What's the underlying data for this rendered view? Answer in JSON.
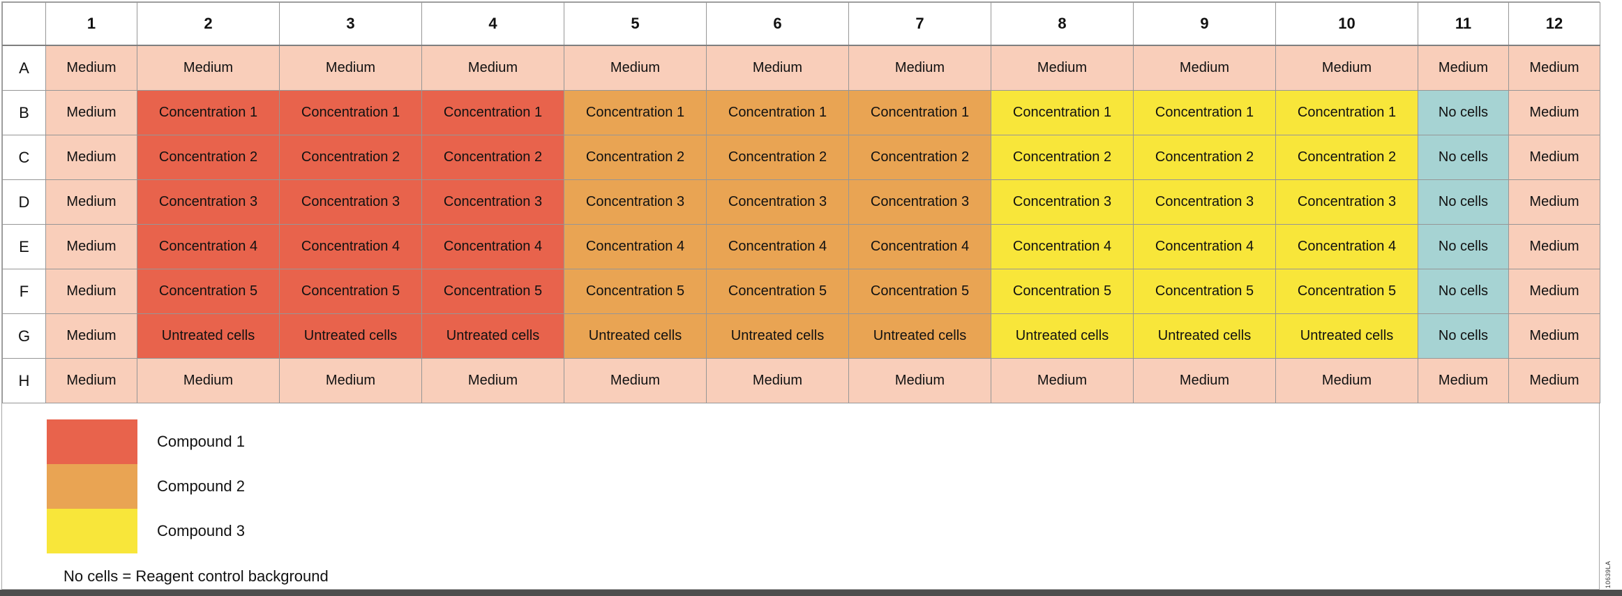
{
  "colors": {
    "medium": "#F9CEBA",
    "compound1": "#E8634C",
    "compound2": "#E9A453",
    "compound3": "#F8E63A",
    "no_cells": "#A6D3D3"
  },
  "plate": {
    "column_headers": [
      "1",
      "2",
      "3",
      "4",
      "5",
      "6",
      "7",
      "8",
      "9",
      "10",
      "11",
      "12"
    ],
    "rows": [
      {
        "label": "A",
        "cells": [
          {
            "text": "Medium",
            "bg": "medium"
          },
          {
            "text": "Medium",
            "bg": "medium"
          },
          {
            "text": "Medium",
            "bg": "medium"
          },
          {
            "text": "Medium",
            "bg": "medium"
          },
          {
            "text": "Medium",
            "bg": "medium"
          },
          {
            "text": "Medium",
            "bg": "medium"
          },
          {
            "text": "Medium",
            "bg": "medium"
          },
          {
            "text": "Medium",
            "bg": "medium"
          },
          {
            "text": "Medium",
            "bg": "medium"
          },
          {
            "text": "Medium",
            "bg": "medium"
          },
          {
            "text": "Medium",
            "bg": "medium"
          },
          {
            "text": "Medium",
            "bg": "medium"
          }
        ]
      },
      {
        "label": "B",
        "cells": [
          {
            "text": "Medium",
            "bg": "medium"
          },
          {
            "text": "Concentration 1",
            "bg": "compound1"
          },
          {
            "text": "Concentration 1",
            "bg": "compound1"
          },
          {
            "text": "Concentration 1",
            "bg": "compound1"
          },
          {
            "text": "Concentration 1",
            "bg": "compound2"
          },
          {
            "text": "Concentration 1",
            "bg": "compound2"
          },
          {
            "text": "Concentration 1",
            "bg": "compound2"
          },
          {
            "text": "Concentration 1",
            "bg": "compound3"
          },
          {
            "text": "Concentration 1",
            "bg": "compound3"
          },
          {
            "text": "Concentration 1",
            "bg": "compound3"
          },
          {
            "text": "No cells",
            "bg": "no_cells"
          },
          {
            "text": "Medium",
            "bg": "medium"
          }
        ]
      },
      {
        "label": "C",
        "cells": [
          {
            "text": "Medium",
            "bg": "medium"
          },
          {
            "text": "Concentration 2",
            "bg": "compound1"
          },
          {
            "text": "Concentration 2",
            "bg": "compound1"
          },
          {
            "text": "Concentration 2",
            "bg": "compound1"
          },
          {
            "text": "Concentration 2",
            "bg": "compound2"
          },
          {
            "text": "Concentration 2",
            "bg": "compound2"
          },
          {
            "text": "Concentration 2",
            "bg": "compound2"
          },
          {
            "text": "Concentration 2",
            "bg": "compound3"
          },
          {
            "text": "Concentration 2",
            "bg": "compound3"
          },
          {
            "text": "Concentration 2",
            "bg": "compound3"
          },
          {
            "text": "No cells",
            "bg": "no_cells"
          },
          {
            "text": "Medium",
            "bg": "medium"
          }
        ]
      },
      {
        "label": "D",
        "cells": [
          {
            "text": "Medium",
            "bg": "medium"
          },
          {
            "text": "Concentration 3",
            "bg": "compound1"
          },
          {
            "text": "Concentration 3",
            "bg": "compound1"
          },
          {
            "text": "Concentration 3",
            "bg": "compound1"
          },
          {
            "text": "Concentration 3",
            "bg": "compound2"
          },
          {
            "text": "Concentration 3",
            "bg": "compound2"
          },
          {
            "text": "Concentration 3",
            "bg": "compound2"
          },
          {
            "text": "Concentration 3",
            "bg": "compound3"
          },
          {
            "text": "Concentration 3",
            "bg": "compound3"
          },
          {
            "text": "Concentration 3",
            "bg": "compound3"
          },
          {
            "text": "No cells",
            "bg": "no_cells"
          },
          {
            "text": "Medium",
            "bg": "medium"
          }
        ]
      },
      {
        "label": "E",
        "cells": [
          {
            "text": "Medium",
            "bg": "medium"
          },
          {
            "text": "Concentration 4",
            "bg": "compound1"
          },
          {
            "text": "Concentration 4",
            "bg": "compound1"
          },
          {
            "text": "Concentration 4",
            "bg": "compound1"
          },
          {
            "text": "Concentration 4",
            "bg": "compound2"
          },
          {
            "text": "Concentration 4",
            "bg": "compound2"
          },
          {
            "text": "Concentration 4",
            "bg": "compound2"
          },
          {
            "text": "Concentration 4",
            "bg": "compound3"
          },
          {
            "text": "Concentration 4",
            "bg": "compound3"
          },
          {
            "text": "Concentration 4",
            "bg": "compound3"
          },
          {
            "text": "No cells",
            "bg": "no_cells"
          },
          {
            "text": "Medium",
            "bg": "medium"
          }
        ]
      },
      {
        "label": "F",
        "cells": [
          {
            "text": "Medium",
            "bg": "medium"
          },
          {
            "text": "Concentration 5",
            "bg": "compound1"
          },
          {
            "text": "Concentration 5",
            "bg": "compound1"
          },
          {
            "text": "Concentration 5",
            "bg": "compound1"
          },
          {
            "text": "Concentration 5",
            "bg": "compound2"
          },
          {
            "text": "Concentration 5",
            "bg": "compound2"
          },
          {
            "text": "Concentration 5",
            "bg": "compound2"
          },
          {
            "text": "Concentration 5",
            "bg": "compound3"
          },
          {
            "text": "Concentration 5",
            "bg": "compound3"
          },
          {
            "text": "Concentration 5",
            "bg": "compound3"
          },
          {
            "text": "No cells",
            "bg": "no_cells"
          },
          {
            "text": "Medium",
            "bg": "medium"
          }
        ]
      },
      {
        "label": "G",
        "cells": [
          {
            "text": "Medium",
            "bg": "medium"
          },
          {
            "text": "Untreated cells",
            "bg": "compound1"
          },
          {
            "text": "Untreated cells",
            "bg": "compound1"
          },
          {
            "text": "Untreated cells",
            "bg": "compound1"
          },
          {
            "text": "Untreated cells",
            "bg": "compound2"
          },
          {
            "text": "Untreated cells",
            "bg": "compound2"
          },
          {
            "text": "Untreated cells",
            "bg": "compound2"
          },
          {
            "text": "Untreated cells",
            "bg": "compound3"
          },
          {
            "text": "Untreated cells",
            "bg": "compound3"
          },
          {
            "text": "Untreated cells",
            "bg": "compound3"
          },
          {
            "text": "No cells",
            "bg": "no_cells"
          },
          {
            "text": "Medium",
            "bg": "medium"
          }
        ]
      },
      {
        "label": "H",
        "cells": [
          {
            "text": "Medium",
            "bg": "medium"
          },
          {
            "text": "Medium",
            "bg": "medium"
          },
          {
            "text": "Medium",
            "bg": "medium"
          },
          {
            "text": "Medium",
            "bg": "medium"
          },
          {
            "text": "Medium",
            "bg": "medium"
          },
          {
            "text": "Medium",
            "bg": "medium"
          },
          {
            "text": "Medium",
            "bg": "medium"
          },
          {
            "text": "Medium",
            "bg": "medium"
          },
          {
            "text": "Medium",
            "bg": "medium"
          },
          {
            "text": "Medium",
            "bg": "medium"
          },
          {
            "text": "Medium",
            "bg": "medium"
          },
          {
            "text": "Medium",
            "bg": "medium"
          }
        ]
      }
    ]
  },
  "legend": {
    "items": [
      {
        "label": "Compound 1",
        "color": "compound1"
      },
      {
        "label": "Compound 2",
        "color": "compound2"
      },
      {
        "label": "Compound 3",
        "color": "compound3"
      }
    ],
    "footnote": "No cells = Reagent control background"
  },
  "watermark": "10639LA"
}
